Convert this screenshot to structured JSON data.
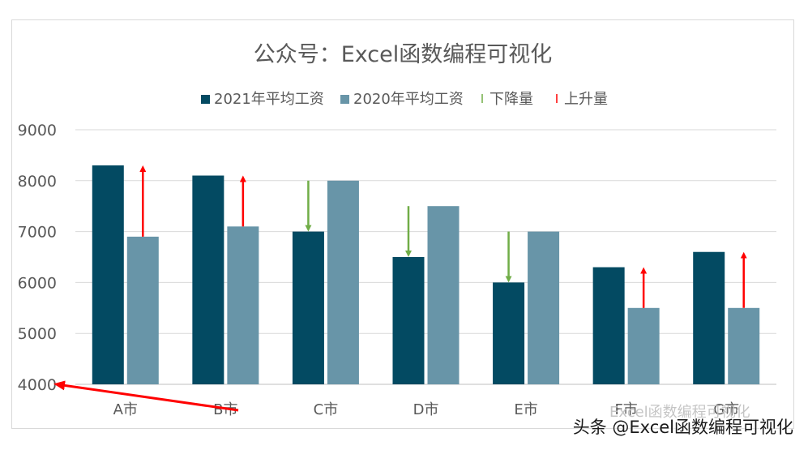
{
  "chart_data": {
    "type": "bar",
    "title": "公众号：Excel函数编程可视化",
    "categories": [
      "A市",
      "B市",
      "C市",
      "D市",
      "E市",
      "F市",
      "G市"
    ],
    "series": [
      {
        "name": "2021年平均工资",
        "values": [
          8300,
          8100,
          7000,
          6500,
          6000,
          6300,
          6600
        ],
        "color": "#034a62"
      },
      {
        "name": "2020年平均工资",
        "values": [
          6900,
          7100,
          8000,
          7500,
          7000,
          5500,
          5500
        ],
        "color": "#6895a8"
      }
    ],
    "change_series": [
      {
        "name": "下降量",
        "color": "#70ad47"
      },
      {
        "name": "上升量",
        "color": "#ff0000"
      }
    ],
    "ylim": [
      4000,
      9000
    ],
    "yticks": [
      4000,
      5000,
      6000,
      7000,
      8000,
      9000
    ],
    "grid": true,
    "legend": "top",
    "xlabel": "",
    "ylabel": ""
  },
  "watermarks": {
    "embedded": "Excel函数编程可视化",
    "footer": "头条 @Excel函数编程可视化"
  },
  "annotation": {
    "type": "red-arrow",
    "color": "#ff0000"
  }
}
